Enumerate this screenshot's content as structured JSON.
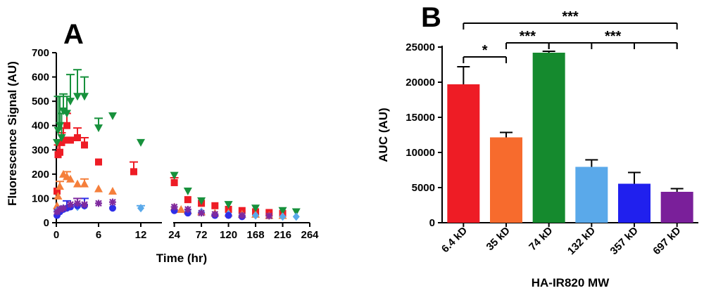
{
  "chart_data": [
    {
      "panel": "A",
      "type": "scatter",
      "xlabel": "Time (hr)",
      "ylabel": "Fluorescence Signal (AU)",
      "x_axis_segments": [
        {
          "xlim": [
            0,
            15
          ],
          "ticks": [
            0,
            6,
            12
          ]
        },
        {
          "xlim": [
            22,
            264
          ],
          "ticks": [
            24,
            72,
            120,
            168,
            216,
            264
          ]
        }
      ],
      "tick_labels_x": [
        "0",
        "6",
        "12",
        "24",
        "72",
        "120",
        "168",
        "216",
        "264"
      ],
      "ylim": [
        0,
        700
      ],
      "yticks": [
        0,
        100,
        200,
        300,
        400,
        500,
        600,
        700
      ],
      "tick_labels_y": [
        "0",
        "100",
        "200",
        "300",
        "400",
        "500",
        "600",
        "700"
      ],
      "series": [
        {
          "name": "6.4 kD",
          "color": "#ee1c25",
          "marker": "square",
          "x": [
            0.1,
            0.25,
            0.5,
            0.75,
            1,
            1.5,
            2,
            3,
            4,
            6,
            11,
            24,
            48,
            72,
            96,
            120,
            144,
            168,
            192,
            216
          ],
          "y": [
            130,
            280,
            290,
            330,
            340,
            400,
            340,
            350,
            320,
            250,
            210,
            165,
            95,
            80,
            70,
            55,
            50,
            45,
            42,
            38
          ],
          "err": [
            0,
            40,
            50,
            40,
            50,
            50,
            0,
            40,
            30,
            0,
            40,
            20,
            0,
            0,
            0,
            0,
            0,
            0,
            0,
            0
          ]
        },
        {
          "name": "35 kD",
          "color": "#f57f3b",
          "marker": "triangle-up",
          "x": [
            0.1,
            0.25,
            0.5,
            1,
            1.5,
            2,
            3,
            4,
            6,
            8,
            24,
            36,
            48,
            72,
            96,
            120,
            144,
            168,
            192,
            216
          ],
          "y": [
            70,
            110,
            150,
            200,
            190,
            180,
            160,
            160,
            140,
            130,
            65,
            55,
            50,
            45,
            40,
            40,
            35,
            35,
            30,
            30
          ],
          "err": [
            0,
            0,
            20,
            0,
            20,
            0,
            0,
            20,
            0,
            0,
            0,
            0,
            0,
            0,
            0,
            0,
            0,
            0,
            0,
            0
          ]
        },
        {
          "name": "74 kD",
          "color": "#17913c",
          "marker": "triangle-down",
          "x": [
            0.1,
            0.25,
            0.5,
            0.75,
            1,
            1.5,
            2,
            3,
            4,
            6,
            8,
            12,
            24,
            48,
            72,
            120,
            168,
            216,
            240
          ],
          "y": [
            330,
            380,
            400,
            350,
            460,
            450,
            500,
            520,
            520,
            390,
            440,
            330,
            195,
            130,
            90,
            75,
            60,
            50,
            45
          ],
          "err": [
            0,
            140,
            120,
            100,
            70,
            70,
            110,
            110,
            80,
            40,
            0,
            0,
            0,
            0,
            0,
            0,
            0,
            0,
            0
          ]
        },
        {
          "name": "132 kD",
          "color": "#5aa9ea",
          "marker": "diamond",
          "x": [
            0.1,
            0.5,
            1,
            2,
            3,
            4,
            12,
            24,
            48,
            72,
            120,
            168,
            216,
            240
          ],
          "y": [
            50,
            55,
            60,
            70,
            65,
            70,
            60,
            55,
            50,
            45,
            35,
            30,
            25,
            25
          ],
          "err": [
            0,
            0,
            0,
            0,
            0,
            0,
            10,
            0,
            0,
            0,
            0,
            0,
            0,
            0
          ]
        },
        {
          "name": "357 kD",
          "color": "#2e2ee8",
          "marker": "circle",
          "x": [
            0.1,
            0.25,
            0.5,
            1,
            1.5,
            2,
            3,
            4,
            8,
            24,
            48,
            96,
            120,
            144
          ],
          "y": [
            30,
            40,
            45,
            55,
            60,
            65,
            70,
            70,
            60,
            50,
            40,
            30,
            30,
            25
          ],
          "err": [
            0,
            0,
            0,
            0,
            30,
            0,
            0,
            30,
            0,
            0,
            0,
            0,
            0,
            0
          ]
        },
        {
          "name": "697 kD",
          "color": "#7f2a9f",
          "marker": "star",
          "x": [
            0.1,
            0.5,
            1,
            2,
            3,
            4,
            6,
            8,
            24,
            48,
            72,
            96,
            144,
            192
          ],
          "y": [
            45,
            55,
            60,
            75,
            80,
            75,
            80,
            85,
            65,
            55,
            40,
            35,
            30,
            28
          ],
          "err": [
            0,
            0,
            0,
            0,
            20,
            0,
            0,
            0,
            0,
            0,
            0,
            0,
            0,
            0
          ]
        }
      ]
    },
    {
      "panel": "B",
      "type": "bar",
      "xlabel": "HA-IR820 MW",
      "ylabel": "AUC (AU)",
      "categories": [
        "6.4 kD",
        "35 kD",
        "74 kD",
        "132 kD",
        "357 kD",
        "697 kD"
      ],
      "values": [
        19700,
        12150,
        24200,
        7950,
        5550,
        4400
      ],
      "errors": [
        2500,
        700,
        200,
        1000,
        1600,
        450
      ],
      "colors": [
        "#ee1c25",
        "#f76b2d",
        "#158a2e",
        "#5aa9ea",
        "#2020ee",
        "#7a1f9a"
      ],
      "ylim": [
        0,
        25000
      ],
      "yticks": [
        0,
        5000,
        10000,
        15000,
        20000,
        25000
      ],
      "tick_labels_y": [
        "0",
        "5000",
        "10000",
        "15000",
        "20000",
        "25000"
      ],
      "significance": [
        {
          "from": 0,
          "to": 5,
          "label": "***",
          "level": 1
        },
        {
          "from": 2,
          "to": 5,
          "label": "***",
          "level": 2,
          "marks": [
            3,
            4,
            5
          ]
        },
        {
          "from": 1,
          "to": 2,
          "label": "***",
          "level": 2
        },
        {
          "from": 0,
          "to": 1,
          "label": "*",
          "level": 3
        }
      ]
    }
  ]
}
